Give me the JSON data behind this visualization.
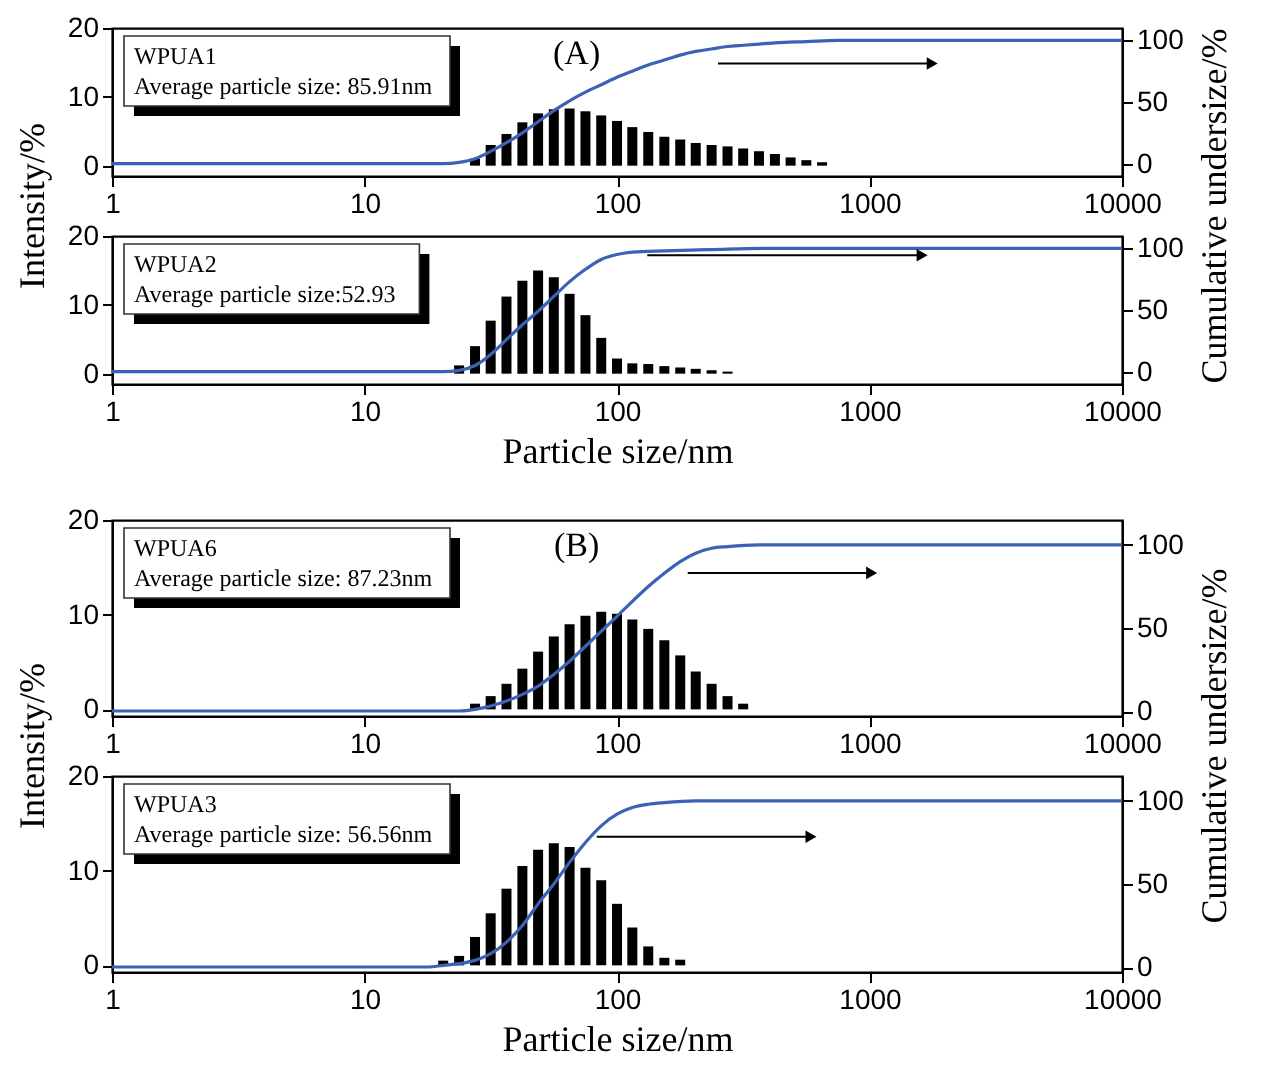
{
  "chart_data": [
    {
      "type": "bar",
      "log": "x",
      "xlim": [
        1,
        10000
      ],
      "xticks": [
        1,
        10,
        100,
        1000,
        10000
      ],
      "ylim": [
        -1.5,
        20
      ],
      "yticks": [
        0,
        10,
        20
      ],
      "y2lim": [
        -10,
        110
      ],
      "y2ticks": [
        0,
        50,
        100
      ],
      "ylabel": "Intensity/%",
      "y2label": "Cumulative undersize/%",
      "annotations": [
        "WPUA1",
        "Average particle size: 85.91nm",
        "(A)"
      ],
      "x": [
        1,
        1.15,
        1.33,
        1.54,
        1.78,
        2.05,
        2.37,
        2.74,
        3.16,
        3.65,
        4.22,
        4.87,
        5.62,
        6.49,
        7.5,
        8.66,
        10,
        11.5,
        13.3,
        15.4,
        17.8,
        20.5,
        23.7,
        27.4,
        31.6,
        36.5,
        42.2,
        48.7,
        56.2,
        64.9,
        75,
        86.6,
        100,
        115,
        133,
        154,
        178,
        205,
        237,
        274,
        316,
        365,
        422,
        487,
        562,
        649,
        750,
        866,
        1000,
        1150,
        1330,
        1540,
        1780,
        2050,
        2370,
        2740,
        3160,
        3650,
        4220,
        4870,
        5620,
        6490,
        7500,
        8660
      ],
      "series": [
        {
          "color": "#000000",
          "values": [
            0,
            0,
            0,
            0,
            0,
            0,
            0,
            0,
            0,
            0,
            0,
            0,
            0,
            0,
            0,
            0,
            0,
            0,
            0,
            0,
            0,
            0,
            0,
            1.0,
            3.0,
            4.6,
            6.3,
            7.6,
            8.2,
            8.3,
            7.9,
            7.3,
            6.5,
            5.6,
            4.9,
            4.2,
            3.8,
            3.3,
            3.0,
            2.8,
            2.5,
            2.1,
            1.7,
            1.2,
            0.8,
            0.5,
            0,
            0,
            0,
            0,
            0,
            0,
            0,
            0,
            0,
            0,
            0,
            0,
            0,
            0,
            0,
            0,
            0,
            0
          ]
        },
        {
          "type": "line",
          "axis": "y2",
          "color": "#3b62b5",
          "x": [
            1,
            20.5,
            23.7,
            27.4,
            31.6,
            36.5,
            42.2,
            48.7,
            56.2,
            64.9,
            75,
            86.6,
            100,
            115,
            133,
            154,
            178,
            205,
            237,
            274,
            316,
            365,
            422,
            562,
            750,
            10000
          ],
          "values": [
            0,
            0,
            1,
            4,
            10,
            17,
            25,
            34,
            43,
            51,
            58,
            64,
            70,
            75,
            80,
            84,
            88,
            91,
            93,
            95,
            96,
            97,
            98,
            99,
            100,
            100
          ]
        }
      ]
    },
    {
      "type": "bar",
      "log": "x",
      "xlim": [
        1,
        10000
      ],
      "xticks": [
        1,
        10,
        100,
        1000,
        10000
      ],
      "ylim": [
        -1.5,
        20
      ],
      "yticks": [
        0,
        10,
        20
      ],
      "y2lim": [
        -10,
        110
      ],
      "y2ticks": [
        0,
        50,
        100
      ],
      "xlabel": "Particle size/nm",
      "annotations": [
        "WPUA2",
        "Average particle size:52.93"
      ],
      "x": [
        1,
        1.15,
        1.33,
        1.54,
        1.78,
        2.05,
        2.37,
        2.74,
        3.16,
        3.65,
        4.22,
        4.87,
        5.62,
        6.49,
        7.5,
        8.66,
        10,
        11.5,
        13.3,
        15.4,
        17.8,
        20.5,
        23.7,
        27.4,
        31.6,
        36.5,
        42.2,
        48.7,
        56.2,
        64.9,
        75,
        86.6,
        100,
        115,
        133,
        154,
        178,
        205,
        237,
        274,
        316,
        365,
        422,
        487,
        562,
        649,
        750,
        866,
        1000,
        1150,
        1330,
        1540,
        1780,
        2050,
        2370,
        2740,
        3160,
        3650,
        4220,
        4870,
        5620,
        6490,
        7500,
        8660
      ],
      "series": [
        {
          "color": "#000000",
          "values": [
            0,
            0,
            0,
            0,
            0,
            0,
            0,
            0,
            0,
            0,
            0,
            0,
            0,
            0,
            0,
            0,
            0,
            0,
            0,
            0,
            0,
            0,
            1.2,
            4.0,
            7.7,
            11.2,
            13.5,
            15.0,
            14.0,
            11.6,
            8.5,
            5.2,
            2.2,
            1.5,
            1.4,
            1.1,
            0.9,
            0.7,
            0.5,
            0.3,
            0,
            0,
            0,
            0,
            0,
            0,
            0,
            0,
            0,
            0,
            0,
            0,
            0,
            0,
            0,
            0,
            0,
            0,
            0,
            0,
            0,
            0,
            0,
            0
          ]
        },
        {
          "type": "line",
          "axis": "y2",
          "color": "#3b62b5",
          "x": [
            1,
            20.5,
            23.7,
            27.4,
            31.6,
            36.5,
            42.2,
            48.7,
            56.2,
            64.9,
            75,
            86.6,
            100,
            115,
            154,
            237,
            422,
            10000
          ],
          "values": [
            0,
            0,
            1,
            5,
            14,
            26,
            38,
            49,
            61,
            73,
            83,
            91,
            95,
            97,
            98,
            99,
            100,
            100
          ]
        }
      ]
    },
    {
      "type": "bar",
      "log": "x",
      "xlim": [
        1,
        10000
      ],
      "xticks": [
        1,
        10,
        100,
        1000,
        10000
      ],
      "ylim": [
        -0.7,
        20
      ],
      "yticks": [
        0,
        10,
        20
      ],
      "y2lim": [
        -3,
        115
      ],
      "y2ticks": [
        0,
        50,
        100
      ],
      "ylabel": "Intensity/%",
      "y2label": "Cumulative undersize/%",
      "annotations": [
        "WPUA6",
        "Average particle size: 87.23nm",
        "(B)"
      ],
      "x": [
        1,
        1.15,
        1.33,
        1.54,
        1.78,
        2.05,
        2.37,
        2.74,
        3.16,
        3.65,
        4.22,
        4.87,
        5.62,
        6.49,
        7.5,
        8.66,
        10,
        11.5,
        13.3,
        15.4,
        17.8,
        20.5,
        23.7,
        27.4,
        31.6,
        36.5,
        42.2,
        48.7,
        56.2,
        64.9,
        75,
        86.6,
        100,
        115,
        133,
        154,
        178,
        205,
        237,
        274,
        316,
        365,
        422,
        487,
        562,
        649,
        750,
        866,
        1000,
        1150,
        1330,
        1540,
        1780,
        2050,
        2370,
        2740,
        3160,
        3650,
        4220,
        4870,
        5620,
        6490,
        7500,
        8660
      ],
      "series": [
        {
          "color": "#000000",
          "values": [
            0,
            0,
            0,
            0,
            0,
            0,
            0,
            0,
            0,
            0,
            0,
            0,
            0,
            0,
            0,
            0,
            0,
            0,
            0,
            0,
            0,
            0,
            0,
            0.6,
            1.4,
            2.7,
            4.3,
            6.1,
            7.7,
            9.0,
            9.9,
            10.3,
            10.1,
            9.5,
            8.5,
            7.3,
            5.7,
            4.0,
            2.7,
            1.4,
            0.6,
            0,
            0,
            0,
            0,
            0,
            0,
            0,
            0,
            0,
            0,
            0,
            0,
            0,
            0,
            0,
            0,
            0,
            0,
            0,
            0,
            0,
            0,
            0
          ]
        },
        {
          "type": "line",
          "axis": "y2",
          "color": "#3b62b5",
          "x": [
            1,
            23.7,
            27.4,
            31.6,
            36.5,
            42.2,
            48.7,
            56.2,
            64.9,
            75,
            86.6,
            100,
            115,
            133,
            154,
            178,
            205,
            237,
            274,
            365,
            10000
          ],
          "values": [
            0,
            0,
            1,
            3,
            6,
            10,
            15,
            22,
            30,
            39,
            48,
            57,
            66,
            75,
            83,
            90,
            95,
            98,
            99,
            100,
            100
          ]
        }
      ]
    },
    {
      "type": "bar",
      "log": "x",
      "xlim": [
        1,
        10000
      ],
      "xticks": [
        1,
        10,
        100,
        1000,
        10000
      ],
      "ylim": [
        -0.7,
        20
      ],
      "yticks": [
        0,
        10,
        20
      ],
      "y2lim": [
        -3,
        115
      ],
      "y2ticks": [
        0,
        50,
        100
      ],
      "xlabel": "Particle size/nm",
      "annotations": [
        "WPUA3",
        "Average particle size: 56.56nm"
      ],
      "x": [
        1,
        1.15,
        1.33,
        1.54,
        1.78,
        2.05,
        2.37,
        2.74,
        3.16,
        3.65,
        4.22,
        4.87,
        5.62,
        6.49,
        7.5,
        8.66,
        10,
        11.5,
        13.3,
        15.4,
        17.8,
        20.5,
        23.7,
        27.4,
        31.6,
        36.5,
        42.2,
        48.7,
        56.2,
        64.9,
        75,
        86.6,
        100,
        115,
        133,
        154,
        178,
        205,
        237,
        274,
        316,
        365,
        422,
        487,
        562,
        649,
        750,
        866,
        1000,
        1150,
        1330,
        1540,
        1780,
        2050,
        2370,
        2740,
        3160,
        3650,
        4220,
        4870,
        5620,
        6490,
        7500,
        8660
      ],
      "series": [
        {
          "color": "#000000",
          "values": [
            0,
            0,
            0,
            0,
            0,
            0,
            0,
            0,
            0,
            0,
            0,
            0,
            0,
            0,
            0,
            0,
            0,
            0,
            0,
            0,
            0,
            0.5,
            1.0,
            3.0,
            5.5,
            8.1,
            10.5,
            12.2,
            12.9,
            12.5,
            10.3,
            9.0,
            6.5,
            4.0,
            2.0,
            0.8,
            0.6,
            0,
            0,
            0,
            0,
            0,
            0,
            0,
            0,
            0,
            0,
            0,
            0,
            0,
            0,
            0,
            0,
            0,
            0,
            0,
            0,
            0,
            0,
            0,
            0,
            0,
            0,
            0
          ]
        },
        {
          "type": "line",
          "axis": "y2",
          "color": "#3b62b5",
          "x": [
            1,
            17.8,
            20.5,
            23.7,
            27.4,
            31.6,
            36.5,
            42.2,
            48.7,
            56.2,
            64.9,
            75,
            86.6,
            100,
            115,
            133,
            154,
            205,
            10000
          ],
          "values": [
            0,
            0,
            1,
            2,
            4,
            8,
            15,
            25,
            38,
            50,
            63,
            75,
            85,
            92,
            96,
            98,
            99,
            100,
            100
          ]
        }
      ]
    }
  ]
}
